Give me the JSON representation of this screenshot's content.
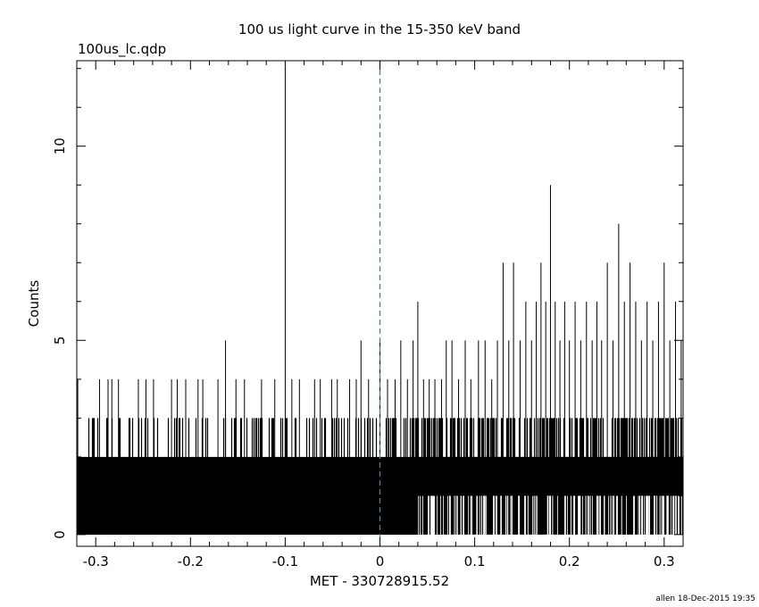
{
  "footer": {
    "credit": "allen 18-Dec-2015 19:35"
  },
  "chart_data": {
    "type": "line",
    "title": "100 us light curve in the 15-350 keV band",
    "subtitle": "100us_lc.qdp",
    "xlabel": "MET - 330728915.52",
    "ylabel": "Counts",
    "xlim": [
      -0.32,
      0.32
    ],
    "ylim": [
      -0.3,
      12.2
    ],
    "x_ticks": [
      -0.3,
      -0.2,
      -0.1,
      0,
      0.1,
      0.2,
      0.3
    ],
    "x_tick_labels": [
      "-0.3",
      "-0.2",
      "-0.1",
      "0",
      "0.1",
      "0.2",
      "0.3"
    ],
    "y_ticks": [
      0,
      5,
      10
    ],
    "y_tick_labels": [
      "0",
      "5",
      "10"
    ],
    "reference_line": {
      "x": 0,
      "style": "dashed",
      "color": "#1e90c0"
    },
    "line_color": "#000000",
    "series": [
      {
        "bin_width": 0.0001,
        "spikes": [
          {
            "x": -0.319,
            "y": 4
          },
          {
            "x": -0.296,
            "y": 4
          },
          {
            "x": -0.287,
            "y": 4
          },
          {
            "x": -0.283,
            "y": 4
          },
          {
            "x": -0.276,
            "y": 4
          },
          {
            "x": -0.255,
            "y": 4
          },
          {
            "x": -0.247,
            "y": 4
          },
          {
            "x": -0.239,
            "y": 4
          },
          {
            "x": -0.22,
            "y": 4
          },
          {
            "x": -0.214,
            "y": 4
          },
          {
            "x": -0.205,
            "y": 4
          },
          {
            "x": -0.192,
            "y": 4
          },
          {
            "x": -0.187,
            "y": 4
          },
          {
            "x": -0.171,
            "y": 4
          },
          {
            "x": -0.163,
            "y": 5
          },
          {
            "x": -0.152,
            "y": 4
          },
          {
            "x": -0.143,
            "y": 4
          },
          {
            "x": -0.125,
            "y": 4
          },
          {
            "x": -0.111,
            "y": 4
          },
          {
            "x": -0.1,
            "y": 12
          },
          {
            "x": -0.093,
            "y": 4
          },
          {
            "x": -0.085,
            "y": 4
          },
          {
            "x": -0.069,
            "y": 4
          },
          {
            "x": -0.063,
            "y": 4
          },
          {
            "x": -0.051,
            "y": 4
          },
          {
            "x": -0.045,
            "y": 4
          },
          {
            "x": -0.032,
            "y": 4
          },
          {
            "x": -0.025,
            "y": 4
          },
          {
            "x": -0.02,
            "y": 5
          },
          {
            "x": -0.012,
            "y": 4
          },
          {
            "x": 0.0,
            "y": 5
          },
          {
            "x": 0.008,
            "y": 4
          },
          {
            "x": 0.016,
            "y": 4
          },
          {
            "x": 0.022,
            "y": 5
          },
          {
            "x": 0.029,
            "y": 4
          },
          {
            "x": 0.035,
            "y": 5
          },
          {
            "x": 0.04,
            "y": 6
          },
          {
            "x": 0.046,
            "y": 4
          },
          {
            "x": 0.052,
            "y": 4
          },
          {
            "x": 0.058,
            "y": 4
          },
          {
            "x": 0.065,
            "y": 4
          },
          {
            "x": 0.07,
            "y": 5
          },
          {
            "x": 0.076,
            "y": 5
          },
          {
            "x": 0.083,
            "y": 4
          },
          {
            "x": 0.09,
            "y": 5
          },
          {
            "x": 0.096,
            "y": 4
          },
          {
            "x": 0.104,
            "y": 5
          },
          {
            "x": 0.111,
            "y": 5
          },
          {
            "x": 0.118,
            "y": 4
          },
          {
            "x": 0.124,
            "y": 5
          },
          {
            "x": 0.13,
            "y": 7
          },
          {
            "x": 0.136,
            "y": 5
          },
          {
            "x": 0.141,
            "y": 7
          },
          {
            "x": 0.148,
            "y": 5
          },
          {
            "x": 0.154,
            "y": 6
          },
          {
            "x": 0.16,
            "y": 5
          },
          {
            "x": 0.165,
            "y": 6
          },
          {
            "x": 0.17,
            "y": 7
          },
          {
            "x": 0.175,
            "y": 6
          },
          {
            "x": 0.18,
            "y": 9
          },
          {
            "x": 0.185,
            "y": 6
          },
          {
            "x": 0.19,
            "y": 5
          },
          {
            "x": 0.195,
            "y": 6
          },
          {
            "x": 0.2,
            "y": 5
          },
          {
            "x": 0.206,
            "y": 6
          },
          {
            "x": 0.212,
            "y": 5
          },
          {
            "x": 0.218,
            "y": 6
          },
          {
            "x": 0.224,
            "y": 5
          },
          {
            "x": 0.229,
            "y": 6
          },
          {
            "x": 0.234,
            "y": 5
          },
          {
            "x": 0.24,
            "y": 7
          },
          {
            "x": 0.246,
            "y": 5
          },
          {
            "x": 0.252,
            "y": 8
          },
          {
            "x": 0.258,
            "y": 6
          },
          {
            "x": 0.264,
            "y": 7
          },
          {
            "x": 0.27,
            "y": 6
          },
          {
            "x": 0.276,
            "y": 5
          },
          {
            "x": 0.282,
            "y": 6
          },
          {
            "x": 0.288,
            "y": 5
          },
          {
            "x": 0.294,
            "y": 6
          },
          {
            "x": 0.3,
            "y": 7
          },
          {
            "x": 0.306,
            "y": 5
          },
          {
            "x": 0.312,
            "y": 6
          },
          {
            "x": 0.318,
            "y": 5
          }
        ]
      }
    ]
  }
}
